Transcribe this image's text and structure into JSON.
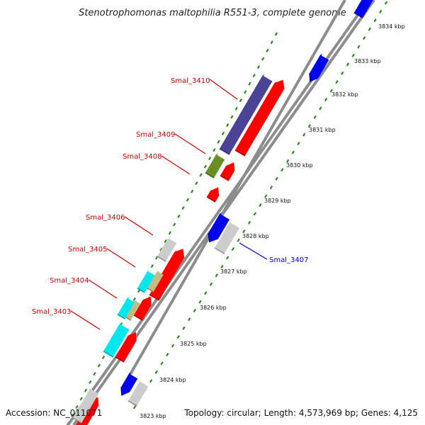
{
  "title": "Stenotrophomonas maltophilia R551-3, complete genome",
  "accession_text": "Accession: NC_011071",
  "summary_text": "Topology: circular; Length: 4,573,969 bp; Genes: 4,125",
  "colors": {
    "backbone": "#8c8c8c",
    "tick": "#2a8a1e",
    "forward_label": "#cc0000",
    "reverse_label": "#0000cc",
    "red": "#ff0000",
    "blue": "#0000ee",
    "gray": "#cccccc",
    "navy": "#4b4396",
    "olive": "#6b8e23",
    "cyan": "#00e8ee",
    "khaki": "#c2bb82"
  },
  "kbp_ticks": [
    "3823 kbp",
    "3824 kbp",
    "3825 kbp",
    "3826 kbp",
    "3827 kbp",
    "3828 kbp",
    "3829 kbp",
    "3830 kbp",
    "3831 kbp",
    "3832 kbp",
    "3833 kbp",
    "3834 kbp"
  ],
  "gene_labels": [
    {
      "name": "Smal_3410",
      "color": "forward_label"
    },
    {
      "name": "Smal_3409",
      "color": "forward_label"
    },
    {
      "name": "Smal_3408",
      "color": "forward_label"
    },
    {
      "name": "Smal_3406",
      "color": "forward_label"
    },
    {
      "name": "Smal_3405",
      "color": "forward_label"
    },
    {
      "name": "Smal_3404",
      "color": "forward_label"
    },
    {
      "name": "Smal_3403",
      "color": "forward_label"
    },
    {
      "name": "Smal_3407",
      "color": "reverse_label"
    }
  ],
  "features": [
    {
      "color": "blue",
      "direction": "forward"
    },
    {
      "color": "blue",
      "direction": "reverse"
    },
    {
      "color": "red",
      "direction": "forward"
    },
    {
      "color": "navy",
      "direction": "none"
    },
    {
      "color": "olive",
      "direction": "none"
    },
    {
      "color": "red",
      "direction": "forward"
    },
    {
      "color": "red",
      "direction": "forward"
    },
    {
      "color": "blue",
      "direction": "reverse"
    },
    {
      "color": "gray",
      "direction": "none"
    },
    {
      "color": "gray",
      "direction": "none"
    },
    {
      "color": "red",
      "direction": "forward"
    },
    {
      "color": "khaki",
      "direction": "none"
    },
    {
      "color": "cyan",
      "direction": "none"
    },
    {
      "color": "red",
      "direction": "forward"
    },
    {
      "color": "khaki",
      "direction": "none"
    },
    {
      "color": "cyan",
      "direction": "none"
    },
    {
      "color": "red",
      "direction": "forward"
    },
    {
      "color": "cyan",
      "direction": "none"
    },
    {
      "color": "red",
      "direction": "forward"
    },
    {
      "color": "blue",
      "direction": "reverse"
    },
    {
      "color": "gray",
      "direction": "none"
    },
    {
      "color": "gray",
      "direction": "none"
    },
    {
      "color": "red",
      "direction": "forward"
    }
  ]
}
